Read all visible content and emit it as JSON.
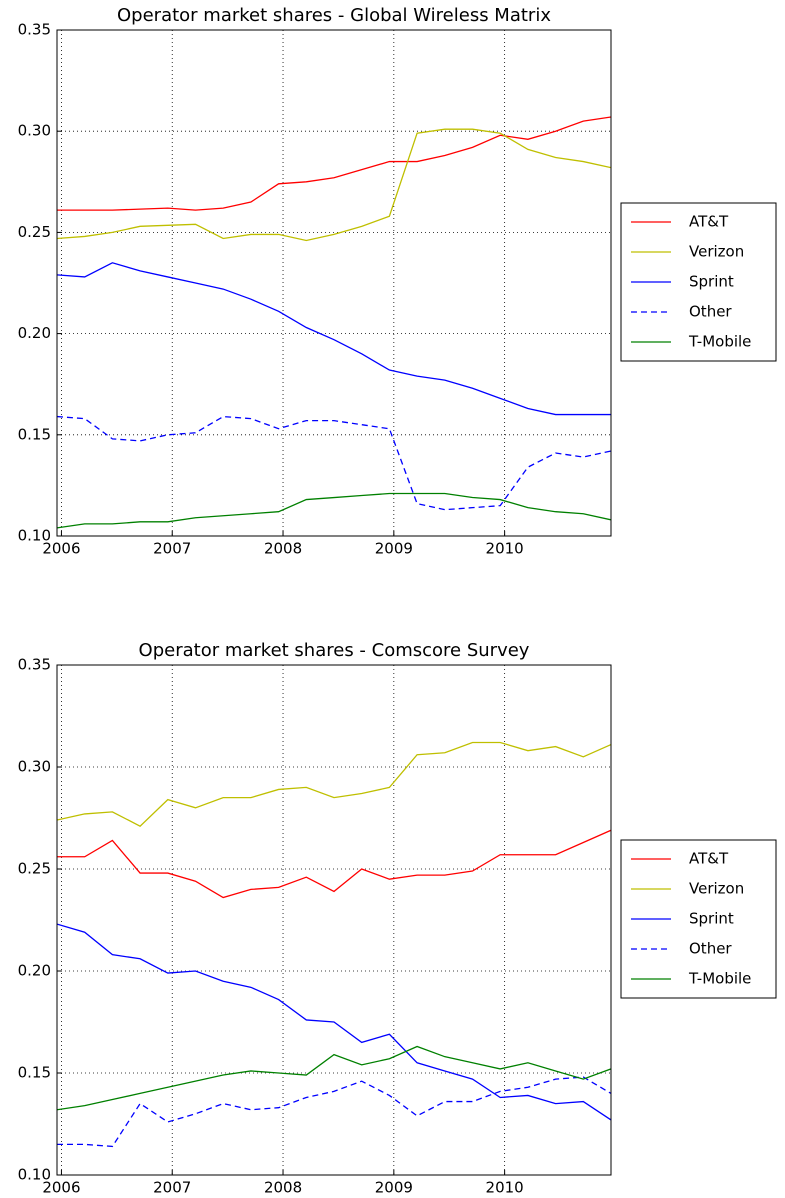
{
  "chart_data": [
    {
      "type": "line",
      "title": "Operator market shares - Global Wireless Matrix",
      "x": [
        2005.96,
        2006.21,
        2006.46,
        2006.71,
        2006.96,
        2007.21,
        2007.46,
        2007.71,
        2007.96,
        2008.21,
        2008.46,
        2008.71,
        2008.96,
        2009.21,
        2009.46,
        2009.71,
        2009.96,
        2010.21,
        2010.46,
        2010.71,
        2010.96
      ],
      "xlim": [
        2005.96,
        2010.96
      ],
      "xticks": [
        2006,
        2007,
        2008,
        2009,
        2010
      ],
      "ylim": [
        0.1,
        0.35
      ],
      "yticks": [
        {
          "value": 0.1,
          "label": "0.10"
        },
        {
          "value": 0.15,
          "label": "0.15"
        },
        {
          "value": 0.2,
          "label": "0.20"
        },
        {
          "value": 0.25,
          "label": "0.25"
        },
        {
          "value": 0.3,
          "label": "0.30"
        },
        {
          "value": 0.35,
          "label": "0.35"
        }
      ],
      "grid": true,
      "legend": "right",
      "series": [
        {
          "name": "AT&T",
          "color": "#ff0000",
          "linestyle": "solid",
          "values": [
            0.261,
            0.261,
            0.261,
            0.2615,
            0.262,
            0.261,
            0.262,
            0.265,
            0.274,
            0.275,
            0.277,
            0.281,
            0.285,
            0.285,
            0.288,
            0.292,
            0.298,
            0.296,
            0.3,
            0.305,
            0.307
          ]
        },
        {
          "name": "Verizon",
          "color": "#bfbf00",
          "linestyle": "solid",
          "values": [
            0.247,
            0.248,
            0.25,
            0.253,
            0.2535,
            0.254,
            0.247,
            0.249,
            0.249,
            0.246,
            0.249,
            0.253,
            0.258,
            0.299,
            0.301,
            0.301,
            0.299,
            0.291,
            0.287,
            0.285,
            0.282
          ]
        },
        {
          "name": "Sprint",
          "color": "#0000ff",
          "linestyle": "solid",
          "values": [
            0.229,
            0.228,
            0.235,
            0.231,
            0.228,
            0.225,
            0.222,
            0.217,
            0.211,
            0.203,
            0.197,
            0.19,
            0.182,
            0.179,
            0.177,
            0.173,
            0.168,
            0.163,
            0.16,
            0.16,
            0.16
          ]
        },
        {
          "name": "Other",
          "color": "#0000ff",
          "linestyle": "dashed",
          "values": [
            0.159,
            0.158,
            0.148,
            0.147,
            0.15,
            0.151,
            0.159,
            0.158,
            0.153,
            0.157,
            0.157,
            0.155,
            0.153,
            0.116,
            0.113,
            0.114,
            0.115,
            0.134,
            0.141,
            0.139,
            0.142
          ]
        },
        {
          "name": "T-Mobile",
          "color": "#008000",
          "linestyle": "solid",
          "values": [
            0.104,
            0.106,
            0.106,
            0.107,
            0.107,
            0.109,
            0.11,
            0.111,
            0.112,
            0.118,
            0.119,
            0.12,
            0.121,
            0.121,
            0.121,
            0.119,
            0.118,
            0.114,
            0.112,
            0.111,
            0.108
          ]
        }
      ]
    },
    {
      "type": "line",
      "title": "Operator market shares - Comscore Survey",
      "x": [
        2005.96,
        2006.21,
        2006.46,
        2006.71,
        2006.96,
        2007.21,
        2007.46,
        2007.71,
        2007.96,
        2008.21,
        2008.46,
        2008.71,
        2008.96,
        2009.21,
        2009.46,
        2009.71,
        2009.96,
        2010.21,
        2010.46,
        2010.71,
        2010.96
      ],
      "xlim": [
        2005.96,
        2010.96
      ],
      "xticks": [
        2006,
        2007,
        2008,
        2009,
        2010
      ],
      "ylim": [
        0.1,
        0.35
      ],
      "yticks": [
        {
          "value": 0.1,
          "label": "0.10"
        },
        {
          "value": 0.15,
          "label": "0.15"
        },
        {
          "value": 0.2,
          "label": "0.20"
        },
        {
          "value": 0.25,
          "label": "0.25"
        },
        {
          "value": 0.3,
          "label": "0.30"
        },
        {
          "value": 0.35,
          "label": "0.35"
        }
      ],
      "grid": true,
      "legend": "right",
      "series": [
        {
          "name": "AT&T",
          "color": "#ff0000",
          "linestyle": "solid",
          "values": [
            0.256,
            0.256,
            0.264,
            0.248,
            0.248,
            0.244,
            0.236,
            0.24,
            0.241,
            0.246,
            0.239,
            0.25,
            0.245,
            0.247,
            0.247,
            0.249,
            0.257,
            0.257,
            0.257,
            0.263,
            0.269
          ]
        },
        {
          "name": "Verizon",
          "color": "#bfbf00",
          "linestyle": "solid",
          "values": [
            0.274,
            0.277,
            0.278,
            0.271,
            0.284,
            0.28,
            0.285,
            0.285,
            0.289,
            0.29,
            0.285,
            0.287,
            0.29,
            0.306,
            0.307,
            0.312,
            0.312,
            0.308,
            0.31,
            0.305,
            0.311
          ]
        },
        {
          "name": "Sprint",
          "color": "#0000ff",
          "linestyle": "solid",
          "values": [
            0.223,
            0.219,
            0.208,
            0.206,
            0.199,
            0.2,
            0.195,
            0.192,
            0.186,
            0.176,
            0.175,
            0.165,
            0.169,
            0.155,
            0.151,
            0.147,
            0.138,
            0.139,
            0.135,
            0.136,
            0.127
          ]
        },
        {
          "name": "Other",
          "color": "#0000ff",
          "linestyle": "dashed",
          "values": [
            0.115,
            0.115,
            0.114,
            0.135,
            0.126,
            0.13,
            0.135,
            0.132,
            0.133,
            0.138,
            0.141,
            0.146,
            0.139,
            0.129,
            0.136,
            0.136,
            0.141,
            0.143,
            0.147,
            0.148,
            0.14
          ]
        },
        {
          "name": "T-Mobile",
          "color": "#008000",
          "linestyle": "solid",
          "values": [
            0.132,
            0.134,
            0.137,
            0.14,
            0.143,
            0.146,
            0.149,
            0.151,
            0.15,
            0.149,
            0.159,
            0.154,
            0.157,
            0.163,
            0.158,
            0.155,
            0.152,
            0.155,
            0.151,
            0.147,
            0.152
          ]
        }
      ]
    }
  ]
}
